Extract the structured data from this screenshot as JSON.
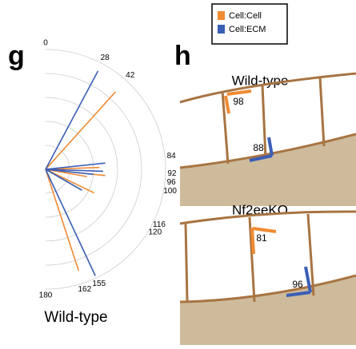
{
  "chart_data": {
    "type": "polar",
    "panel_label": "g",
    "caption": "Wild-type",
    "rlim": [
      0,
      1
    ],
    "grid": true,
    "series": [
      {
        "name": "Cell:Cell",
        "color": "#f08a33",
        "angles": [
          42,
          162,
          88,
          96,
          116,
          100
        ],
        "r": [
          0.87,
          0.89,
          0.45,
          0.5,
          0.45,
          0.35
        ]
      },
      {
        "name": "Cell:ECM",
        "color": "#3b5eb5",
        "angles": [
          28,
          155,
          84,
          92,
          120,
          96
        ],
        "r": [
          0.93,
          0.98,
          0.5,
          0.48,
          0.35,
          0.4
        ]
      }
    ],
    "angle_labels": [
      0,
      28,
      42,
      84,
      92,
      96,
      100,
      116,
      120,
      155,
      162,
      180
    ]
  },
  "diagram": {
    "panel_label": "h",
    "panels": [
      {
        "title": "Wild-type",
        "angles": [
          98,
          88
        ]
      },
      {
        "title": "Nf2eeKO",
        "angles": [
          81,
          96
        ]
      }
    ]
  }
}
